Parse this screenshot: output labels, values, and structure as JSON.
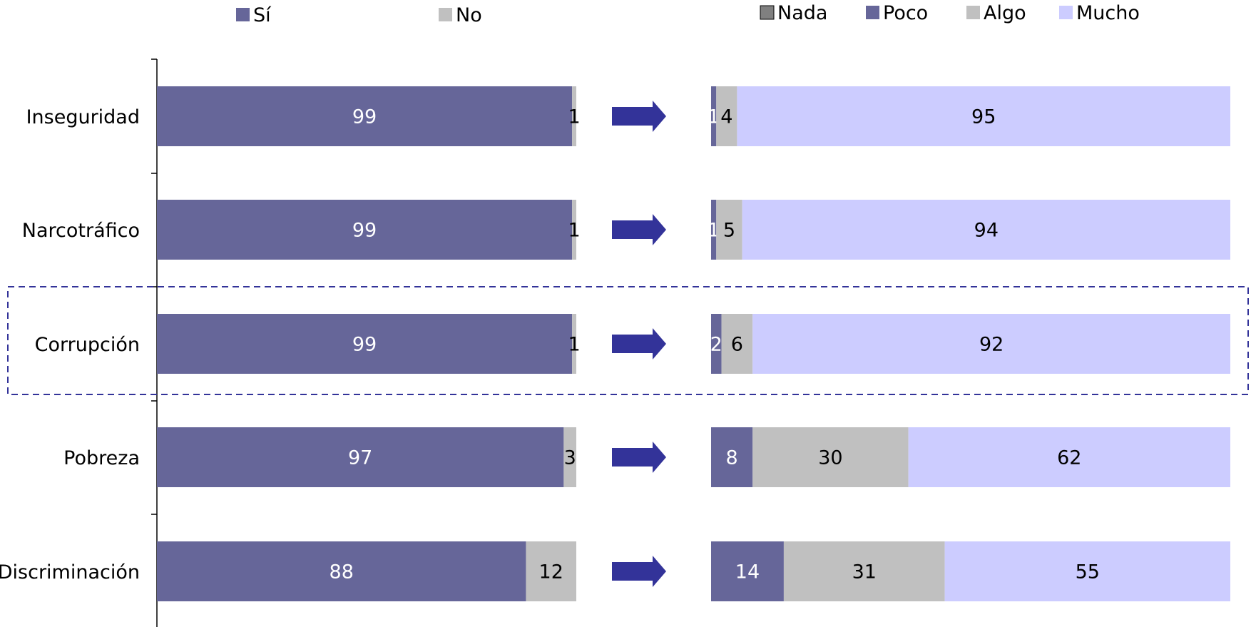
{
  "chart_data": [
    {
      "type": "bar",
      "orientation": "horizontal",
      "stacked": true,
      "categories": [
        "Inseguridad",
        "Narcotráfico",
        "Corrupción",
        "Pobreza",
        "Discriminación"
      ],
      "series": [
        {
          "name": "Sí",
          "color": "#666699",
          "values": [
            99,
            99,
            99,
            97,
            88
          ]
        },
        {
          "name": "No",
          "color": "#c0c0c0",
          "values": [
            1,
            1,
            1,
            3,
            12
          ]
        }
      ],
      "legend_position": "top",
      "grid": false
    },
    {
      "type": "bar",
      "orientation": "horizontal",
      "stacked": true,
      "categories": [
        "Inseguridad",
        "Narcotráfico",
        "Corrupción",
        "Pobreza",
        "Discriminación"
      ],
      "series": [
        {
          "name": "Nada",
          "color": "#808080",
          "values": [
            0,
            0,
            0,
            0,
            0
          ]
        },
        {
          "name": "Poco",
          "color": "#666699",
          "values": [
            1,
            1,
            2,
            8,
            14
          ]
        },
        {
          "name": "Algo",
          "color": "#c0c0c0",
          "values": [
            4,
            5,
            6,
            30,
            31
          ]
        },
        {
          "name": "Mucho",
          "color": "#ccccff",
          "values": [
            95,
            94,
            92,
            62,
            55
          ]
        }
      ],
      "legend_position": "top",
      "grid": false
    }
  ],
  "highlight_category": "Corrupción",
  "colors": {
    "arrow": "#333399",
    "highlight_border": "#333399",
    "axis": "#000000"
  }
}
